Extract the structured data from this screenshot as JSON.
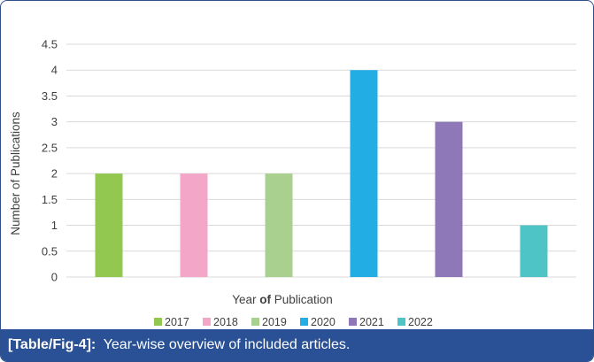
{
  "chart_data": {
    "type": "bar",
    "categories": [
      "2017",
      "2018",
      "2019",
      "2020",
      "2021",
      "2022"
    ],
    "values": [
      2,
      2,
      2,
      4,
      3,
      1
    ],
    "colors": [
      "#92c850",
      "#f4a6c8",
      "#a9d08e",
      "#22aee4",
      "#8e78b8",
      "#4fc4c6"
    ],
    "xlabel_parts": [
      {
        "text": "Year ",
        "bold": false
      },
      {
        "text": "of",
        "bold": true
      },
      {
        "text": " Publication",
        "bold": false
      }
    ],
    "ylabel": "Number of Publications",
    "ylim": [
      0,
      4.5
    ],
    "yticks": [
      "0",
      "0.5",
      "1",
      "1.5",
      "2",
      "2.5",
      "3",
      "3.5",
      "4",
      "4.5"
    ],
    "legend_position": "bottom",
    "grid": true
  },
  "caption": {
    "label": "[Table/Fig-4]:",
    "text": "Year-wise overview of included articles."
  }
}
